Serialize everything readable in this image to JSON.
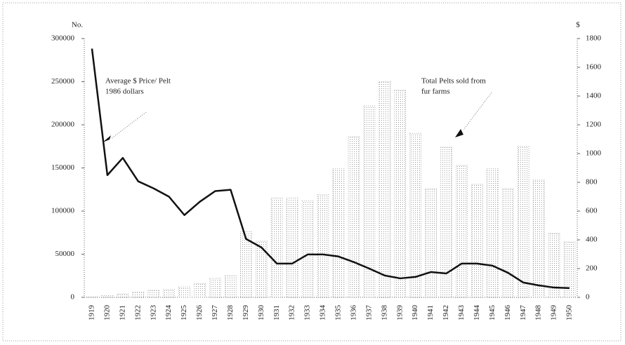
{
  "chart_data": {
    "type": "bar_line",
    "y_label": "No.",
    "y2_label": "$",
    "annotations": [
      "Average $ Price/ Pelt",
      "1986 dollars",
      "Total Pelts sold from",
      "fur farms"
    ],
    "categories": [
      "1919",
      "1920",
      "1921",
      "1922",
      "1923",
      "1924",
      "1925",
      "1926",
      "1927",
      "1928",
      "1929",
      "1930",
      "1931",
      "1932",
      "1933",
      "1934",
      "1935",
      "1936",
      "1937",
      "1938",
      "1939",
      "1940",
      "1941",
      "1942",
      "1943",
      "1944",
      "1945",
      "1946",
      "1947",
      "1948",
      "1949",
      "1950"
    ],
    "series": [
      {
        "name": "Total Pelts sold from fur farms",
        "kind": "bar",
        "color": "#d9d9d9",
        "values": [
          500,
          2000,
          4000,
          6000,
          8000,
          9000,
          12000,
          16000,
          22000,
          25000,
          76000,
          65000,
          115000,
          115000,
          112000,
          119000,
          149000,
          186000,
          222000,
          250000,
          240000,
          190000,
          126000,
          174000,
          153000,
          131000,
          149000,
          126000,
          175000,
          136000,
          74000,
          64000
        ]
      },
      {
        "name": "Average $ Price/ Pelt 1986 dollars",
        "kind": "line",
        "axis": "y2",
        "color": "#111111",
        "values": [
          1730,
          850,
          970,
          807,
          758,
          700,
          572,
          665,
          739,
          748,
          406,
          347,
          235,
          235,
          298,
          298,
          284,
          245,
          200,
          152,
          132,
          142,
          176,
          166,
          235,
          235,
          220,
          171,
          103,
          83,
          68,
          64
        ]
      }
    ],
    "ylim": [
      0,
      300000
    ],
    "yticks": [
      0,
      50000,
      100000,
      150000,
      200000,
      250000,
      300000
    ],
    "y2lim": [
      0,
      1800
    ],
    "y2ticks": [
      0,
      200,
      400,
      600,
      800,
      1000,
      1200,
      1400,
      1600,
      1800
    ],
    "grid": false
  }
}
